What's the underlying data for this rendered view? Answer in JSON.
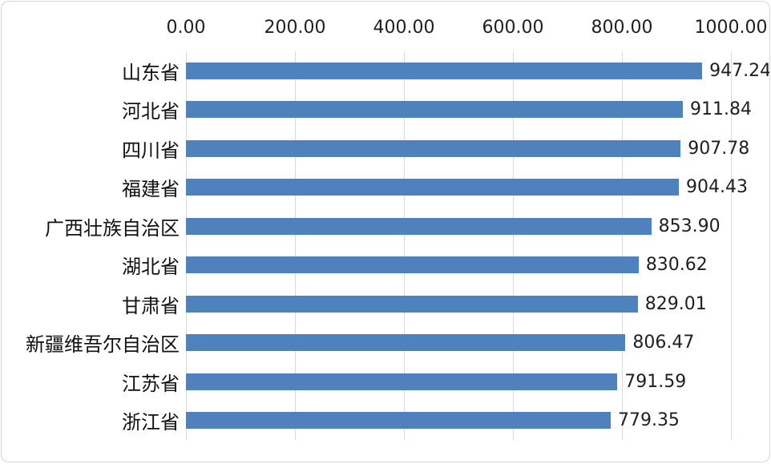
{
  "chart_data": {
    "type": "bar",
    "orientation": "horizontal",
    "title": "",
    "xlabel": "",
    "ylabel": "",
    "legend": "none",
    "grid": "vertical-gridlines",
    "axis_position": "top",
    "xlim": [
      0,
      1000
    ],
    "x_ticks": [
      "0.00",
      "200.00",
      "400.00",
      "600.00",
      "800.00",
      "1000.00"
    ],
    "x_tick_values": [
      0,
      200,
      400,
      600,
      800,
      1000
    ],
    "categories": [
      "山东省",
      "河北省",
      "四川省",
      "福建省",
      "广西壮族自治区",
      "湖北省",
      "甘肃省",
      "新疆维吾尔自治区",
      "江苏省",
      "浙江省"
    ],
    "values": [
      947.24,
      911.84,
      907.78,
      904.43,
      853.9,
      830.62,
      829.01,
      806.47,
      791.59,
      779.35
    ],
    "value_labels": [
      "947.24",
      "911.84",
      "907.78",
      "904.43",
      "853.90",
      "830.62",
      "829.01",
      "806.47",
      "791.59",
      "779.35"
    ],
    "bar_color": "#4F81BD",
    "gridline_color": "#D9D9D9",
    "frame_border_color": "#D7D7D7",
    "text_color": "#1F1F1F"
  }
}
